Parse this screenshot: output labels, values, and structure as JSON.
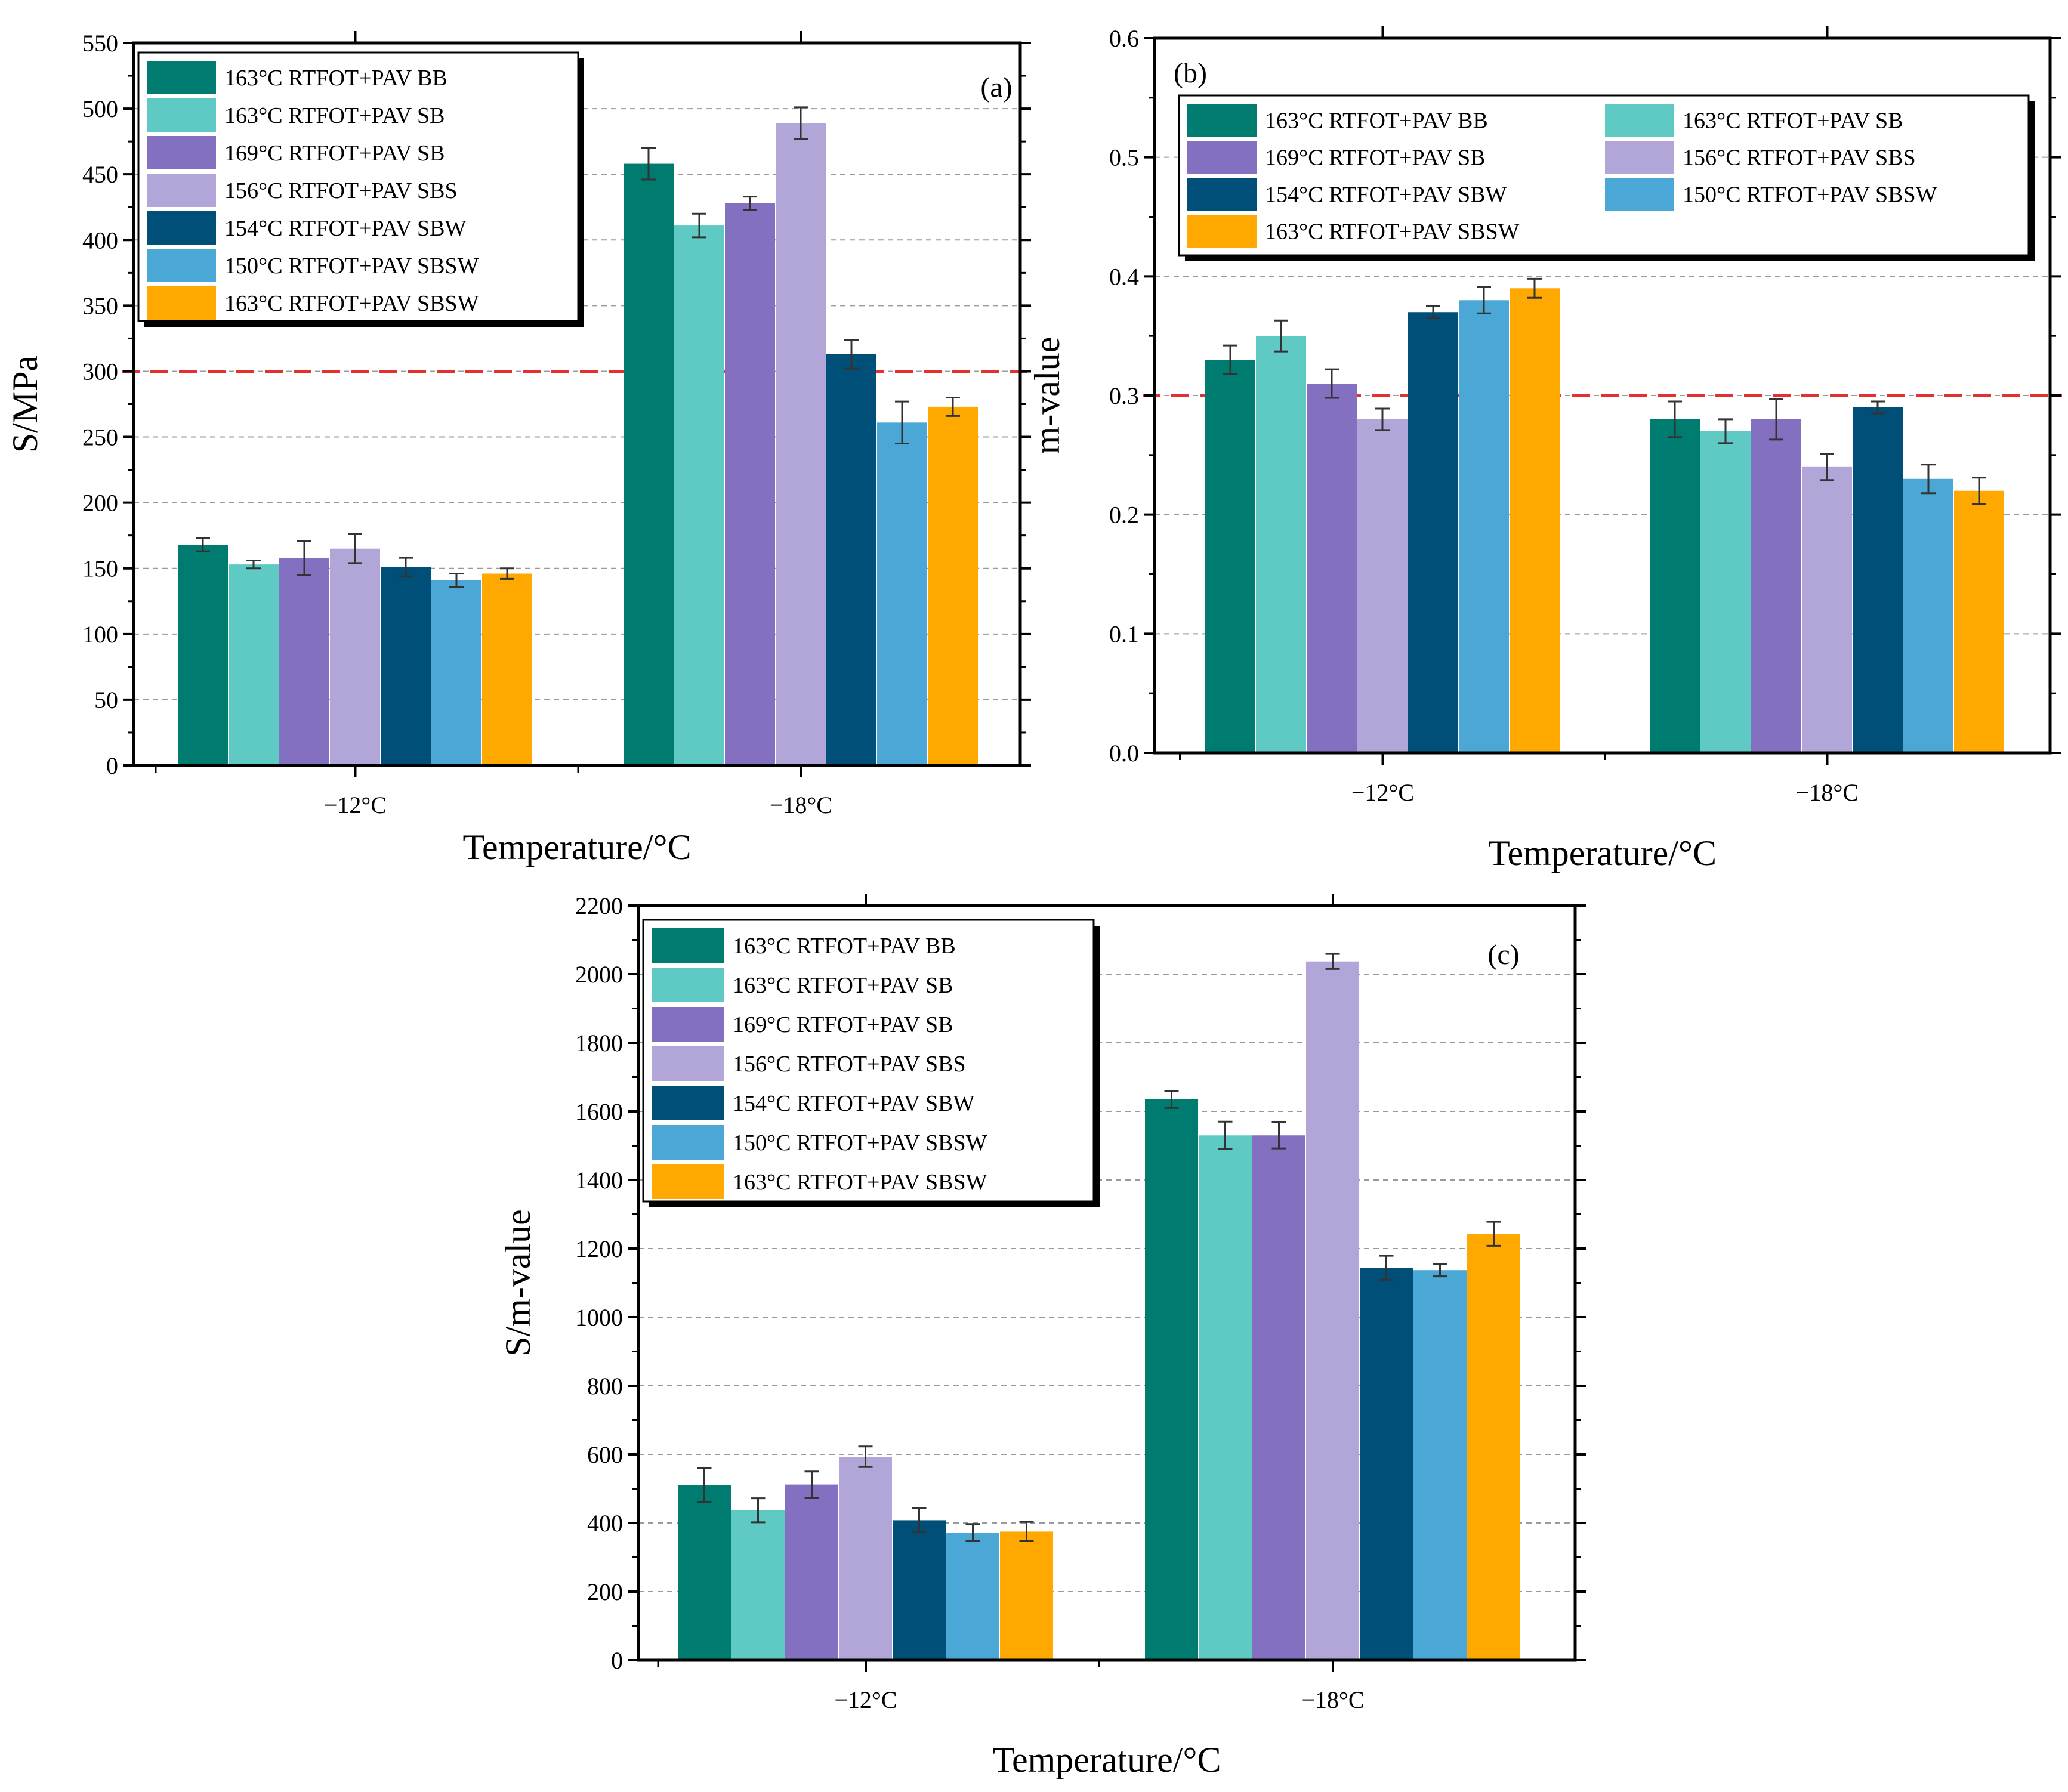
{
  "colors": {
    "163°C RTFOT+PAV BB": "#007b70",
    "163°C RTFOT+PAV SB": "#5fcac3",
    "169°C RTFOT+PAV SB": "#8470c0",
    "156°C RTFOT+PAV SBS": "#b2a6d8",
    "154°C RTFOT+PAV SBW": "#004f79",
    "150°C RTFOT+PAV SBSW": "#4aa7d6",
    "163°C RTFOT+PAV SBSW ": "#ffa800",
    "reference_line": "#e53030"
  },
  "chart_data": [
    {
      "type": "bar",
      "panel_label": "(a)",
      "xlabel": "Temperature/°C",
      "ylabel": "S/MPa",
      "categories": [
        "−12°C",
        "−18°C"
      ],
      "ylim": [
        0,
        550
      ],
      "yticks": [
        "0",
        "50",
        "100",
        "150",
        "200",
        "250",
        "300",
        "350",
        "400",
        "450",
        "500",
        "550"
      ],
      "grid": true,
      "legend_placement": "top-left",
      "legend_columns": 1,
      "reference_line": 300,
      "series": [
        {
          "name": "163°C RTFOT+PAV BB",
          "values": [
            168,
            458
          ],
          "errors": [
            5,
            12
          ]
        },
        {
          "name": "163°C RTFOT+PAV SB",
          "values": [
            153,
            411
          ],
          "errors": [
            3,
            9
          ]
        },
        {
          "name": "169°C RTFOT+PAV SB",
          "values": [
            158,
            428
          ],
          "errors": [
            13,
            5
          ]
        },
        {
          "name": "156°C RTFOT+PAV SBS",
          "values": [
            165,
            489
          ],
          "errors": [
            11,
            12
          ]
        },
        {
          "name": "154°C RTFOT+PAV SBW",
          "values": [
            151,
            313
          ],
          "errors": [
            7,
            11
          ]
        },
        {
          "name": "150°C RTFOT+PAV SBSW",
          "values": [
            141,
            261
          ],
          "errors": [
            5,
            16
          ]
        },
        {
          "name": "163°C RTFOT+PAV SBSW ",
          "values": [
            146,
            273
          ],
          "errors": [
            4,
            7
          ]
        }
      ]
    },
    {
      "type": "bar",
      "panel_label": "(b)",
      "xlabel": "Temperature/°C",
      "ylabel": "m-value",
      "categories": [
        "−12°C",
        "−18°C"
      ],
      "ylim": [
        0,
        0.6
      ],
      "yticks": [
        "0.0",
        "0.1",
        "0.2",
        "0.3",
        "0.4",
        "0.5",
        "0.6"
      ],
      "grid": true,
      "legend_placement": "top",
      "legend_columns": 2,
      "reference_line": 0.3,
      "series": [
        {
          "name": "163°C RTFOT+PAV BB",
          "values": [
            0.33,
            0.28
          ],
          "errors": [
            0.012,
            0.015
          ]
        },
        {
          "name": "163°C RTFOT+PAV SB",
          "values": [
            0.35,
            0.27
          ],
          "errors": [
            0.013,
            0.01
          ]
        },
        {
          "name": "169°C RTFOT+PAV SB",
          "values": [
            0.31,
            0.28
          ],
          "errors": [
            0.012,
            0.017
          ]
        },
        {
          "name": "156°C RTFOT+PAV SBS",
          "values": [
            0.28,
            0.24
          ],
          "errors": [
            0.009,
            0.011
          ]
        },
        {
          "name": "154°C RTFOT+PAV SBW",
          "values": [
            0.37,
            0.29
          ],
          "errors": [
            0.005,
            0.005
          ]
        },
        {
          "name": "150°C RTFOT+PAV SBSW",
          "values": [
            0.38,
            0.23
          ],
          "errors": [
            0.011,
            0.012
          ]
        },
        {
          "name": "163°C RTFOT+PAV SBSW ",
          "values": [
            0.39,
            0.22
          ],
          "errors": [
            0.008,
            0.011
          ]
        }
      ]
    },
    {
      "type": "bar",
      "panel_label": "(c)",
      "xlabel": "Temperature/°C",
      "ylabel": "S/m-value",
      "categories": [
        "−12°C",
        "−18°C"
      ],
      "ylim": [
        0,
        2200
      ],
      "yticks": [
        "0",
        "200",
        "400",
        "600",
        "800",
        "1000",
        "1200",
        "1400",
        "1600",
        "1800",
        "2000",
        "2200"
      ],
      "grid": true,
      "legend_placement": "top-left",
      "legend_columns": 1,
      "series": [
        {
          "name": "163°C RTFOT+PAV BB",
          "values": [
            510,
            1635
          ],
          "errors": [
            50,
            25
          ]
        },
        {
          "name": "163°C RTFOT+PAV SB",
          "values": [
            437,
            1530
          ],
          "errors": [
            35,
            40
          ]
        },
        {
          "name": "169°C RTFOT+PAV SB",
          "values": [
            512,
            1530
          ],
          "errors": [
            38,
            38
          ]
        },
        {
          "name": "156°C RTFOT+PAV SBS",
          "values": [
            593,
            2037
          ],
          "errors": [
            30,
            22
          ]
        },
        {
          "name": "154°C RTFOT+PAV SBW",
          "values": [
            408,
            1144
          ],
          "errors": [
            35,
            35
          ]
        },
        {
          "name": "150°C RTFOT+PAV SBSW",
          "values": [
            372,
            1137
          ],
          "errors": [
            25,
            18
          ]
        },
        {
          "name": "163°C RTFOT+PAV SBSW ",
          "values": [
            375,
            1243
          ],
          "errors": [
            28,
            35
          ]
        }
      ]
    }
  ]
}
